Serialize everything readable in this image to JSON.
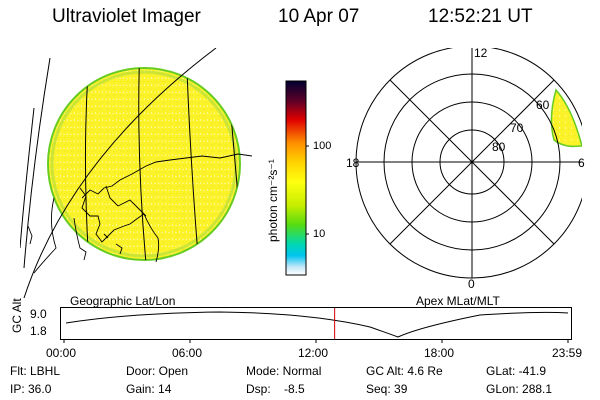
{
  "header": {
    "title": "Ultraviolet Imager",
    "date": "10 Apr 07",
    "time": "12:52:21 UT"
  },
  "geo_panel": {
    "label": "Geographic Lat/Lon"
  },
  "colorbar": {
    "unit": "photon cm⁻²s⁻¹",
    "ticks": [
      "100",
      "10"
    ],
    "colors": [
      "#000030",
      "#8b0000",
      "#ff0000",
      "#ff8c00",
      "#ffd000",
      "#ffff00",
      "#c8f000",
      "#60e000",
      "#00d8a0",
      "#00c8f0",
      "#c8e8f8",
      "#ffffff"
    ]
  },
  "polar_panel": {
    "label": "Apex MLat/MLT",
    "mlt_labels": {
      "top": "12",
      "bottom": "0",
      "left": "18",
      "right": "6"
    },
    "lat_labels": [
      "60",
      "70",
      "80"
    ]
  },
  "timeline": {
    "axis_label": "GC Alt",
    "y_ticks": [
      "9.0",
      "1.8"
    ],
    "x_ticks": [
      "00:00",
      "06:00",
      "12:00",
      "18:00",
      "23:59"
    ],
    "current_time_fraction": 0.537
  },
  "status": {
    "flt": "Flt: LBHL",
    "ip": "IP: 36.0",
    "door": "Door: Open",
    "gain": "Gain: 14",
    "mode": "Mode: Normal",
    "dsp": "Dsp:    -8.5",
    "gc_alt": "GC Alt: 4.6 Re",
    "seq": "Seq: 39",
    "glat": "GLat: -41.9",
    "glon": "GLon: 288.1"
  }
}
